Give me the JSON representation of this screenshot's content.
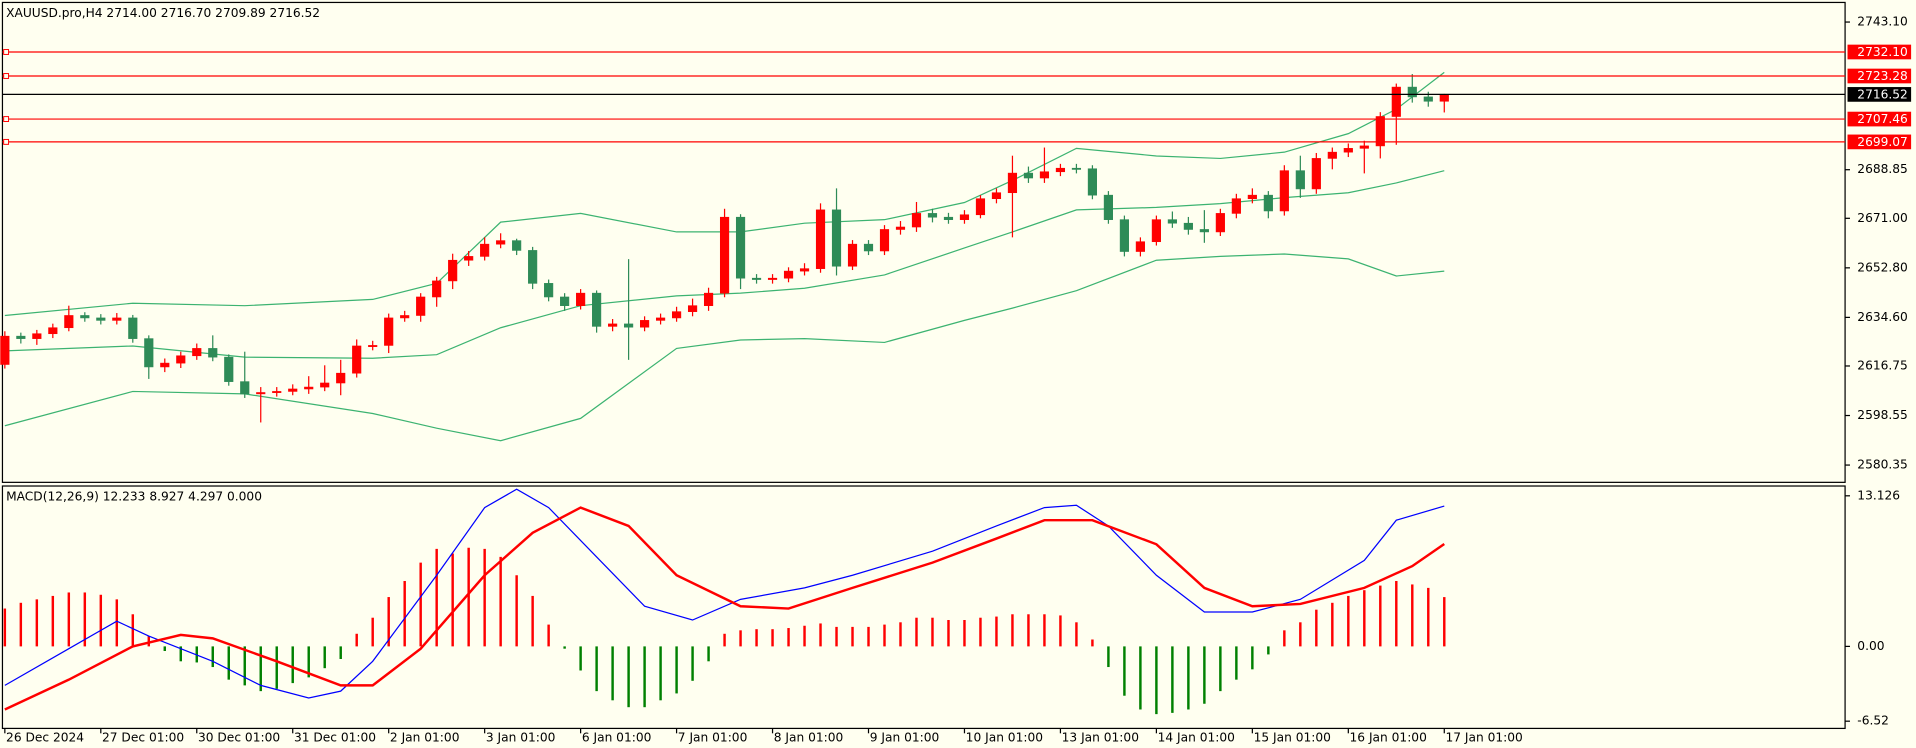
{
  "chart_data": [
    {
      "type": "candlestick",
      "title": "XAUUSD.pro,H4  2714.00 2716.70 2709.89 2716.52",
      "open": [
        2617.3,
        2627.7,
        2626.8,
        2628.6,
        2630.8,
        2635.3,
        2634.4,
        2633.5,
        2634.4,
        2626.8,
        2616.4,
        2617.8,
        2620.5,
        2623.2,
        2620.0,
        2611.0,
        2606.5,
        2607.0,
        2607.4,
        2608.3,
        2609.0,
        2610.5,
        2614.1,
        2624.1,
        2624.3,
        2634.4,
        2635.3,
        2642.1,
        2648.0,
        2655.6,
        2657.0,
        2661.5,
        2662.8,
        2659.2,
        2647.1,
        2642.1,
        2638.9,
        2643.5,
        2631.3,
        2632.2,
        2631.0,
        2633.5,
        2634.4,
        2636.7,
        2638.9,
        2643.5,
        2671.4,
        2649.0,
        2648.5,
        2649.0,
        2651.6,
        2652.5,
        2674.1,
        2653.4,
        2661.5,
        2659.0,
        2666.9,
        2667.8,
        2672.8,
        2671.4,
        2670.5,
        2672.3,
        2678.2,
        2680.4,
        2687.6,
        2685.8,
        2688.1,
        2689.4,
        2689.2,
        2679.5,
        2670.5,
        2658.8,
        2662.4,
        2670.5,
        2669.2,
        2666.9,
        2666.0,
        2672.8,
        2678.2,
        2679.5,
        2673.7,
        2688.5,
        2681.8,
        2693.0,
        2695.3,
        2696.7,
        2697.6,
        2708.4,
        2719.2,
        2715.6,
        2714.0
      ],
      "high": [
        2629.5,
        2629.0,
        2630.0,
        2632.3,
        2638.9,
        2636.5,
        2635.8,
        2636.2,
        2635.5,
        2628.0,
        2619.5,
        2622.0,
        2625.0,
        2628.0,
        2621.0,
        2622.0,
        2609.0,
        2609.0,
        2610.0,
        2613.0,
        2617.0,
        2619.0,
        2626.5,
        2626.0,
        2636.0,
        2637.0,
        2643.5,
        2649.5,
        2658.0,
        2659.0,
        2664.0,
        2665.5,
        2663.5,
        2660.5,
        2648.5,
        2643.5,
        2645.0,
        2644.5,
        2634.0,
        2656.0,
        2635.0,
        2636.0,
        2638.5,
        2641.5,
        2645.5,
        2674.5,
        2672.5,
        2650.5,
        2650.5,
        2653.0,
        2654.5,
        2676.5,
        2682.0,
        2663.0,
        2663.0,
        2668.5,
        2670.0,
        2677.0,
        2674.5,
        2673.0,
        2674.0,
        2679.5,
        2682.0,
        2694.0,
        2690.0,
        2697.0,
        2691.0,
        2691.0,
        2690.5,
        2681.0,
        2672.0,
        2664.0,
        2672.0,
        2673.5,
        2671.5,
        2674.0,
        2674.5,
        2680.0,
        2682.0,
        2681.0,
        2690.5,
        2694.0,
        2695.0,
        2697.0,
        2698.5,
        2699.5,
        2710.0,
        2720.5,
        2724.0,
        2717.5,
        2716.7
      ],
      "low": [
        2615.8,
        2625.0,
        2624.5,
        2627.0,
        2629.5,
        2633.0,
        2632.0,
        2632.0,
        2625.3,
        2612.0,
        2614.5,
        2616.0,
        2619.0,
        2618.5,
        2609.5,
        2605.0,
        2596.0,
        2605.5,
        2606.0,
        2606.5,
        2607.5,
        2606.0,
        2612.5,
        2622.5,
        2621.5,
        2633.0,
        2633.0,
        2638.5,
        2645.0,
        2653.5,
        2655.5,
        2660.0,
        2657.5,
        2645.0,
        2640.5,
        2637.0,
        2637.5,
        2629.0,
        2629.5,
        2619.0,
        2629.5,
        2632.0,
        2633.0,
        2635.0,
        2637.0,
        2642.0,
        2645.0,
        2647.0,
        2647.0,
        2647.5,
        2650.0,
        2651.0,
        2650.0,
        2652.0,
        2657.5,
        2657.5,
        2665.0,
        2666.0,
        2669.5,
        2669.0,
        2669.0,
        2671.0,
        2676.5,
        2664.0,
        2684.0,
        2684.0,
        2686.5,
        2687.5,
        2678.0,
        2669.0,
        2657.0,
        2657.0,
        2661.0,
        2667.5,
        2665.0,
        2662.0,
        2664.5,
        2671.0,
        2676.5,
        2671.0,
        2672.0,
        2678.5,
        2680.0,
        2689.0,
        2693.5,
        2687.5,
        2693.0,
        2698.0,
        2713.5,
        2712.0,
        2709.89
      ],
      "close": [
        2627.7,
        2626.8,
        2628.6,
        2630.8,
        2635.3,
        2634.4,
        2633.5,
        2634.4,
        2626.8,
        2616.4,
        2617.8,
        2620.5,
        2623.2,
        2620.0,
        2611.0,
        2606.5,
        2607.0,
        2607.4,
        2608.3,
        2609.0,
        2610.5,
        2614.1,
        2624.1,
        2624.3,
        2634.4,
        2635.3,
        2642.1,
        2648.0,
        2655.6,
        2657.0,
        2661.5,
        2662.8,
        2659.2,
        2647.1,
        2642.1,
        2638.9,
        2643.5,
        2631.3,
        2632.2,
        2631.0,
        2633.5,
        2634.4,
        2636.7,
        2638.9,
        2643.5,
        2671.4,
        2649.0,
        2648.5,
        2649.0,
        2651.6,
        2652.5,
        2674.1,
        2653.4,
        2661.5,
        2659.0,
        2666.9,
        2667.8,
        2672.8,
        2671.4,
        2670.5,
        2672.3,
        2678.2,
        2680.4,
        2687.6,
        2685.8,
        2688.1,
        2689.4,
        2689.2,
        2679.5,
        2670.5,
        2658.8,
        2662.4,
        2670.5,
        2669.2,
        2666.9,
        2666.0,
        2672.8,
        2678.2,
        2679.5,
        2673.7,
        2688.5,
        2681.8,
        2693.0,
        2695.3,
        2696.7,
        2697.6,
        2708.4,
        2719.2,
        2715.6,
        2714.0,
        2716.52
      ],
      "up_color": "#ff0000",
      "down_color": "#2e8b57",
      "bands": [
        {
          "color": "#3cb371",
          "x": [
            0,
            8,
            15,
            23,
            27,
            31,
            36,
            42,
            46,
            50,
            55,
            60,
            63,
            67,
            72,
            76,
            80,
            84,
            87,
            90
          ],
          "values": [
            2635.3,
            2639.8,
            2638.9,
            2641.2,
            2647.1,
            2669.6,
            2672.8,
            2666.0,
            2666.0,
            2669.2,
            2670.5,
            2676.8,
            2684.9,
            2696.7,
            2693.9,
            2693.0,
            2695.3,
            2702.1,
            2711.1,
            2724.6
          ]
        },
        {
          "color": "#3cb371",
          "x": [
            0,
            8,
            15,
            23,
            27,
            31,
            36,
            42,
            46,
            50,
            55,
            60,
            63,
            67,
            72,
            76,
            80,
            84,
            87,
            90
          ],
          "values": [
            2622.3,
            2624.1,
            2620.0,
            2619.6,
            2620.9,
            2630.8,
            2638.9,
            2642.5,
            2643.5,
            2645.3,
            2650.2,
            2660.1,
            2666.0,
            2674.1,
            2675.0,
            2676.4,
            2678.6,
            2680.4,
            2684.0,
            2688.5
          ]
        },
        {
          "color": "#3cb371",
          "x": [
            0,
            8,
            15,
            23,
            27,
            31,
            36,
            42,
            46,
            50,
            55,
            60,
            63,
            67,
            72,
            76,
            80,
            84,
            87,
            90
          ],
          "values": [
            2594.8,
            2607.4,
            2606.5,
            2599.3,
            2593.9,
            2589.3,
            2597.5,
            2623.2,
            2626.3,
            2626.8,
            2625.4,
            2633.5,
            2638.0,
            2644.4,
            2655.6,
            2657.0,
            2657.9,
            2656.1,
            2649.8,
            2651.6
          ]
        }
      ],
      "levels": {
        "values": [
          2732.1,
          2723.28,
          2707.46,
          2699.07
        ],
        "value_labels": [
          "2732.10",
          "2723.28",
          "2707.46",
          "2699.07"
        ],
        "color": "#ff0000"
      },
      "last_price_color": "#000000",
      "xlim": [
        -0.15,
        115.06
      ],
      "xticks": [
        {
          "value": 0,
          "label": "26 Dec 2024"
        },
        {
          "value": 6,
          "label": "27 Dec 01:00"
        },
        {
          "value": 12,
          "label": "30 Dec 01:00"
        },
        {
          "value": 18,
          "label": "31 Dec 01:00"
        },
        {
          "value": 24,
          "label": "2 Jan 01:00"
        },
        {
          "value": 30,
          "label": "3 Jan 01:00"
        },
        {
          "value": 36,
          "label": "6 Jan 01:00"
        },
        {
          "value": 42,
          "label": "7 Jan 01:00"
        },
        {
          "value": 48,
          "label": "8 Jan 01:00"
        },
        {
          "value": 54,
          "label": "9 Jan 01:00"
        },
        {
          "value": 60,
          "label": "10 Jan 01:00"
        },
        {
          "value": 66,
          "label": "13 Jan 01:00"
        },
        {
          "value": 72,
          "label": "14 Jan 01:00"
        },
        {
          "value": 78,
          "label": "15 Jan 01:00"
        },
        {
          "value": 84,
          "label": "16 Jan 01:00"
        },
        {
          "value": 90,
          "label": "17 Jan 01:00"
        }
      ],
      "ylim": [
        2574.0,
        2750.3
      ],
      "yticks": [
        {
          "value": 2743.1,
          "label": "2743.10"
        },
        {
          "value": 2688.85,
          "label": "2688.85"
        },
        {
          "value": 2671,
          "label": "2671.00"
        },
        {
          "value": 2652.8,
          "label": "2652.80"
        },
        {
          "value": 2634.6,
          "label": "2634.60"
        },
        {
          "value": 2616.75,
          "label": "2616.75"
        },
        {
          "value": 2598.55,
          "label": "2598.55"
        },
        {
          "value": 2580.35,
          "label": "2580.35"
        }
      ]
    },
    {
      "type": "macd",
      "title": "MACD(12,26,9) 12.233 8.927 4.297 0.000",
      "values": [
        3.3,
        3.8,
        4.1,
        4.4,
        4.7,
        4.7,
        4.5,
        4.1,
        2.8,
        0.9,
        -0.4,
        -1.3,
        -1.4,
        -1.8,
        -2.9,
        -3.4,
        -3.9,
        -3.7,
        -3.2,
        -2.7,
        -1.9,
        -1.1,
        1.1,
        2.5,
        4.3,
        5.7,
        7.3,
        8.5,
        8.1,
        8.6,
        8.5,
        7.8,
        6.2,
        4.4,
        1.9,
        -0.2,
        -2.1,
        -3.9,
        -4.7,
        -5.3,
        -5.3,
        -4.7,
        -4.1,
        -3.0,
        -1.3,
        1.1,
        1.4,
        1.5,
        1.5,
        1.6,
        1.8,
        2.0,
        1.7,
        1.7,
        1.7,
        1.9,
        2.1,
        2.5,
        2.5,
        2.3,
        2.3,
        2.5,
        2.6,
        2.8,
        2.8,
        2.8,
        2.7,
        2.1,
        0.6,
        -1.8,
        -4.3,
        -5.5,
        -5.9,
        -5.8,
        -5.5,
        -5.0,
        -3.9,
        -2.9,
        -2.0,
        -0.7,
        1.4,
        2.1,
        3.2,
        3.8,
        4.4,
        4.9,
        5.3,
        5.7,
        5.4,
        5.1,
        4.297
      ],
      "pos_color": "#ff0000",
      "neg_color": "#008000",
      "series": [
        {
          "color": "#0000ff",
          "x": [
            0,
            4,
            7,
            9,
            13,
            16,
            19,
            21,
            23,
            27,
            30,
            32,
            34,
            37,
            40,
            43,
            46,
            50,
            53,
            58,
            62,
            65,
            67,
            69,
            72,
            75,
            78,
            81,
            85,
            87,
            90
          ],
          "values": [
            -3.4,
            -0.2,
            2.2,
            0.9,
            -1.3,
            -3.4,
            -4.5,
            -3.9,
            -1.3,
            6.2,
            12.1,
            13.7,
            12.1,
            7.8,
            3.5,
            2.3,
            4.1,
            5.1,
            6.2,
            8.3,
            10.5,
            12.1,
            12.3,
            10.5,
            6.2,
            3.0,
            3.0,
            4.1,
            7.5,
            11.0,
            12.233
          ]
        },
        {
          "color": "#ff0000",
          "x": [
            0,
            4,
            8,
            11,
            13,
            17,
            21,
            23,
            26,
            30,
            33,
            36,
            39,
            42,
            46,
            49,
            53,
            58,
            62,
            65,
            68,
            72,
            75,
            78,
            81,
            85,
            88,
            90
          ],
          "values": [
            -5.5,
            -2.9,
            0.0,
            1.0,
            0.7,
            -1.3,
            -3.4,
            -3.4,
            -0.2,
            6.2,
            9.9,
            12.1,
            10.5,
            6.2,
            3.5,
            3.3,
            5.1,
            7.3,
            9.4,
            11.0,
            11.0,
            8.9,
            5.1,
            3.5,
            3.7,
            5.1,
            7.0,
            8.927
          ]
        }
      ],
      "xlim": [
        -0.15,
        115.06
      ],
      "ylim": [
        -7.15,
        13.98
      ],
      "yticks": [
        13.126,
        {
          "value": 0,
          "label": "0.00"
        },
        -6.52
      ]
    }
  ]
}
